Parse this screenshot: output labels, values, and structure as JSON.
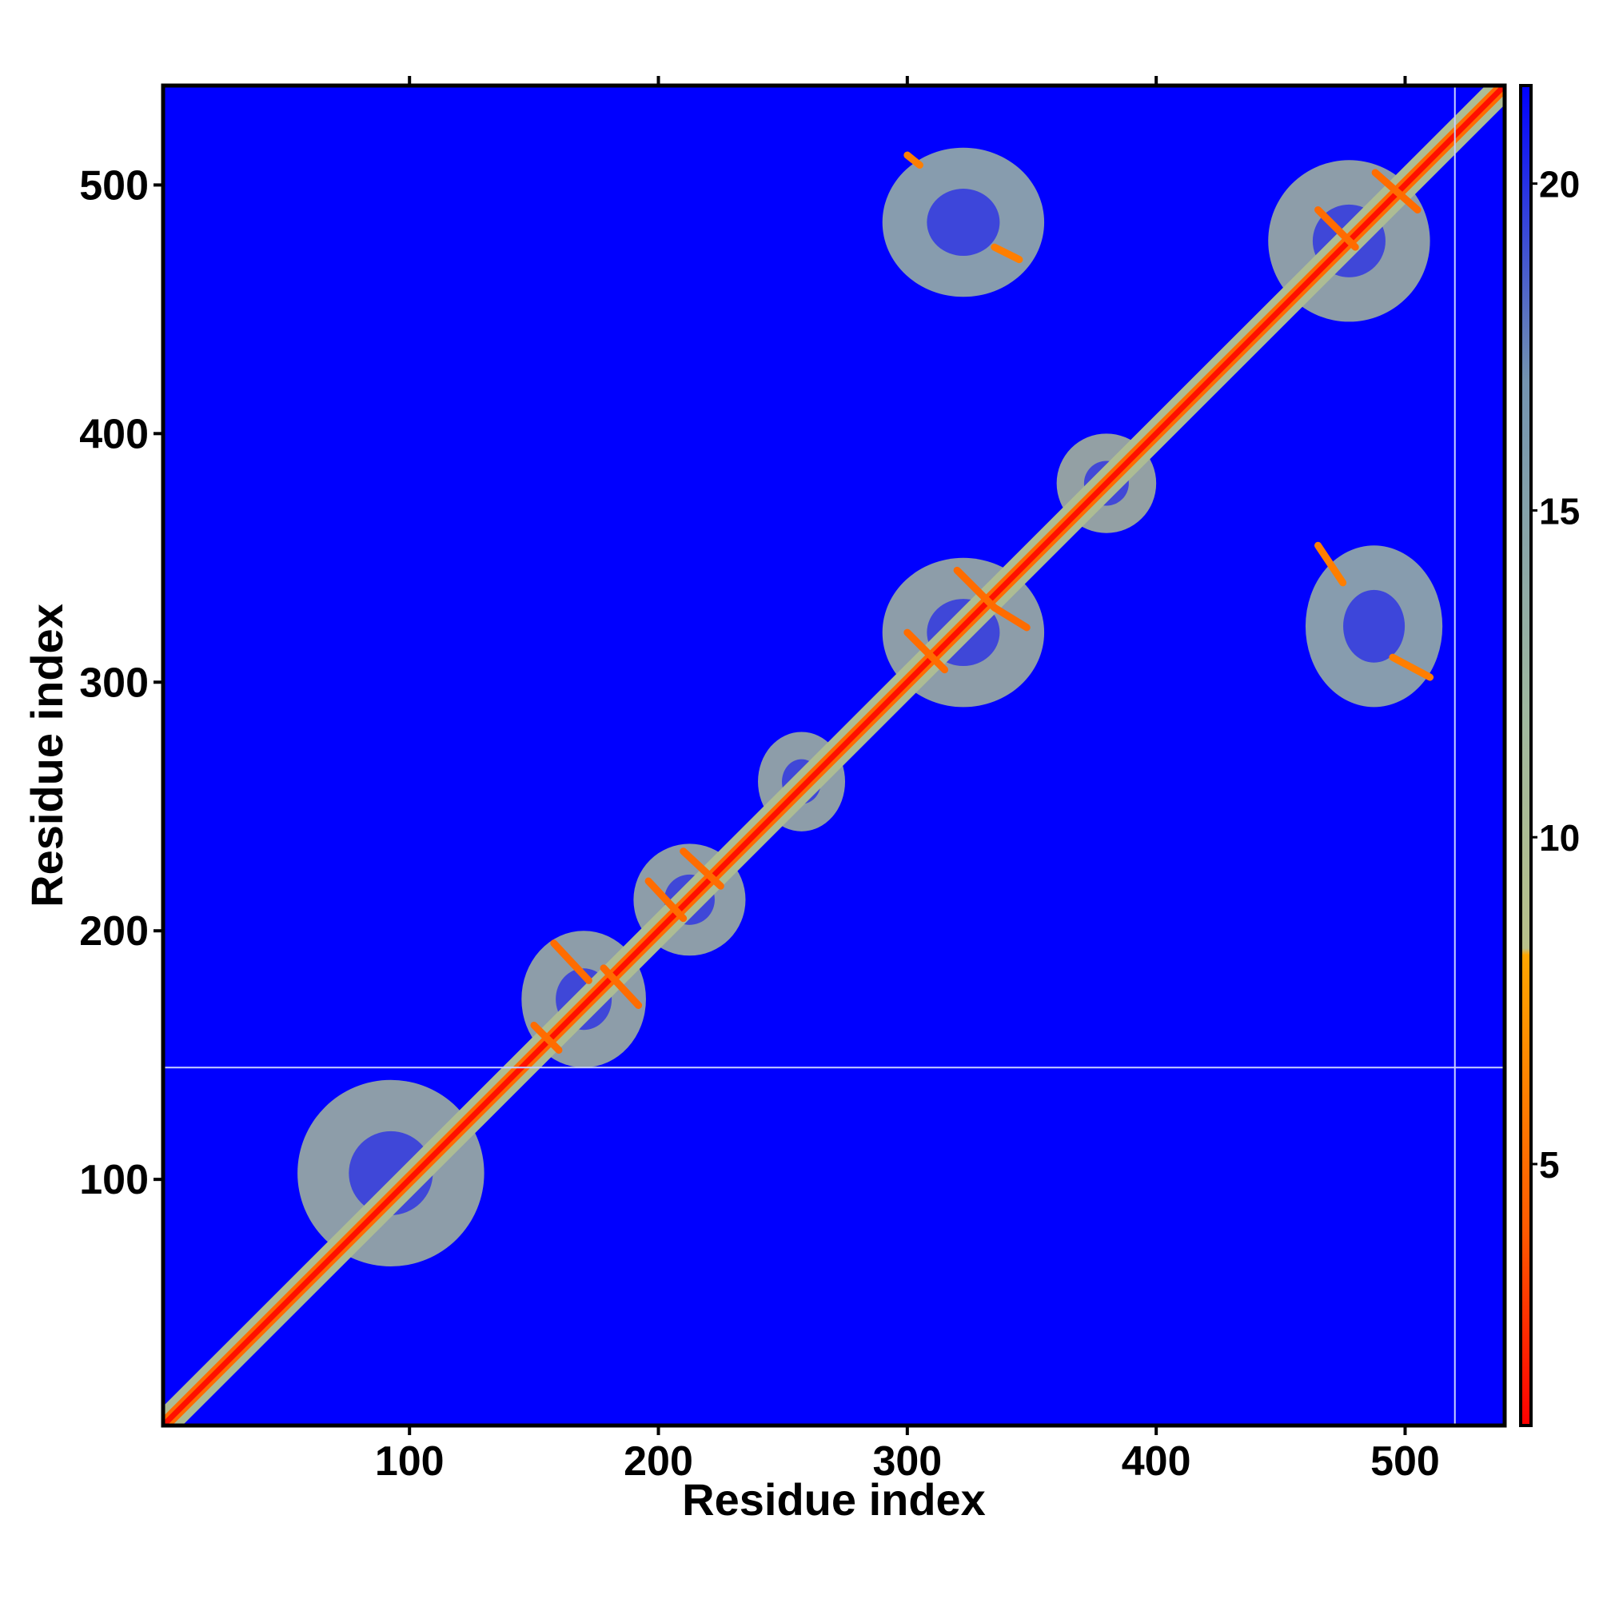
{
  "chart_data": {
    "type": "heatmap",
    "title": "",
    "xlabel": "Residue index",
    "ylabel": "Residue index",
    "xlim": [
      1,
      540
    ],
    "ylim": [
      1,
      540
    ],
    "x_ticks": [
      100,
      200,
      300,
      400,
      500
    ],
    "y_ticks": [
      100,
      200,
      300,
      400,
      500
    ],
    "colorbar": {
      "range": [
        1,
        21.5
      ],
      "ticks": [
        5,
        10,
        15,
        20
      ],
      "stops": [
        {
          "value": 1,
          "color": "#ff0000"
        },
        {
          "value": 4,
          "color": "#ff5a00"
        },
        {
          "value": 8.2,
          "color": "#ffa500"
        },
        {
          "value": 8.3,
          "color": "#b8c08a"
        },
        {
          "value": 12,
          "color": "#9fb7a0"
        },
        {
          "value": 17,
          "color": "#7393b0"
        },
        {
          "value": 21.5,
          "color": "#0000ff"
        }
      ]
    },
    "background_value": 21.5,
    "gap_lines": {
      "y": 145,
      "x": 520
    },
    "diagonal": {
      "from": 1,
      "to": 540,
      "value": 1.5
    },
    "contact_regions": [
      {
        "x": [
          55,
          130
        ],
        "y": [
          65,
          140
        ],
        "value": 11
      },
      {
        "x": [
          145,
          195
        ],
        "y": [
          145,
          200
        ],
        "value": 11
      },
      {
        "x": [
          190,
          235
        ],
        "y": [
          190,
          235
        ],
        "value": 11
      },
      {
        "x": [
          290,
          355
        ],
        "y": [
          290,
          350
        ],
        "value": 11
      },
      {
        "x": [
          445,
          510
        ],
        "y": [
          445,
          510
        ],
        "value": 11
      },
      {
        "x": [
          360,
          400
        ],
        "y": [
          360,
          400
        ],
        "value": 10
      },
      {
        "x": [
          240,
          275
        ],
        "y": [
          240,
          280
        ],
        "value": 11
      },
      {
        "x": [
          290,
          355
        ],
        "y": [
          455,
          515
        ],
        "value": 12
      },
      {
        "x": [
          460,
          515
        ],
        "y": [
          290,
          355
        ],
        "value": 12
      }
    ],
    "strand_pairs": [
      {
        "x": [
          150,
          160
        ],
        "y": [
          162,
          152
        ],
        "value": 5
      },
      {
        "x": [
          158,
          172
        ],
        "y": [
          195,
          180
        ],
        "value": 5
      },
      {
        "x": [
          178,
          192
        ],
        "y": [
          185,
          170
        ],
        "value": 5
      },
      {
        "x": [
          196,
          210
        ],
        "y": [
          220,
          205
        ],
        "value": 5
      },
      {
        "x": [
          210,
          225
        ],
        "y": [
          232,
          218
        ],
        "value": 5
      },
      {
        "x": [
          300,
          315
        ],
        "y": [
          320,
          305
        ],
        "value": 5
      },
      {
        "x": [
          320,
          335
        ],
        "y": [
          345,
          330
        ],
        "value": 5
      },
      {
        "x": [
          335,
          348
        ],
        "y": [
          330,
          322
        ],
        "value": 5
      },
      {
        "x": [
          465,
          480
        ],
        "y": [
          490,
          475
        ],
        "value": 5
      },
      {
        "x": [
          488,
          505
        ],
        "y": [
          505,
          490
        ],
        "value": 5
      },
      {
        "x": [
          300,
          305
        ],
        "y": [
          512,
          508
        ],
        "value": 6
      },
      {
        "x": [
          335,
          345
        ],
        "y": [
          475,
          470
        ],
        "value": 6
      },
      {
        "x": [
          465,
          475
        ],
        "y": [
          355,
          340
        ],
        "value": 6
      },
      {
        "x": [
          495,
          510
        ],
        "y": [
          310,
          302
        ],
        "value": 6
      }
    ]
  }
}
